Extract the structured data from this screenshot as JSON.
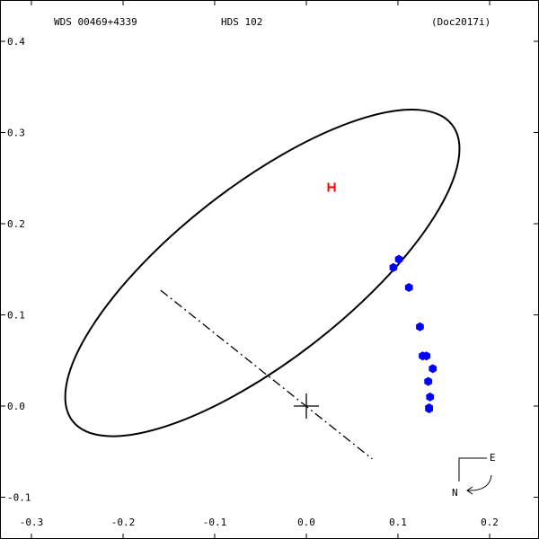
{
  "header": {
    "left": "WDS 00469+4339",
    "center": "HDS 102",
    "right": "(Doc2017i)"
  },
  "compass": {
    "east": "E",
    "north": "N"
  },
  "chart_data": {
    "type": "scatter",
    "xlim": [
      -0.3,
      0.2
    ],
    "ylim": [
      -0.1,
      0.4
    ],
    "x_ticks": [
      -0.3,
      -0.2,
      -0.1,
      0.0,
      0.1,
      0.2
    ],
    "x_tick_labels": [
      "-0.3",
      "-0.2",
      "-0.1",
      "0.0",
      "0.1",
      "0.2"
    ],
    "y_ticks": [
      0.4,
      0.3,
      0.2,
      0.1,
      0.0,
      -0.1
    ],
    "y_tick_labels": [
      "0.4",
      "0.3",
      "0.2",
      "0.1",
      "0.0",
      "-0.1"
    ],
    "orbit_center": [
      -0.048,
      0.146
    ],
    "orbit_semi_axes": [
      0.095,
      0.264
    ],
    "orbit_angle_deg": 52,
    "line_of_nodes": [
      [
        -0.159,
        0.127
      ],
      [
        0.072,
        -0.058
      ]
    ],
    "primary_star": [
      0.0,
      0.0
    ],
    "observations": [
      {
        "x": 0.101,
        "y": 0.161
      },
      {
        "x": 0.095,
        "y": 0.152
      },
      {
        "x": 0.112,
        "y": 0.13
      },
      {
        "x": 0.124,
        "y": 0.087
      },
      {
        "x": 0.127,
        "y": 0.055
      },
      {
        "x": 0.131,
        "y": 0.055
      },
      {
        "x": 0.138,
        "y": 0.041
      },
      {
        "x": 0.133,
        "y": 0.027
      },
      {
        "x": 0.135,
        "y": 0.01
      },
      {
        "x": 0.134,
        "y": -0.002
      },
      {
        "x": 0.134,
        "y": -0.003
      }
    ],
    "marker": {
      "x": 0.028,
      "y": 0.24
    },
    "colors": {
      "curve": "#000000",
      "observation": "#0000ff",
      "marker": "#ff0000"
    }
  }
}
